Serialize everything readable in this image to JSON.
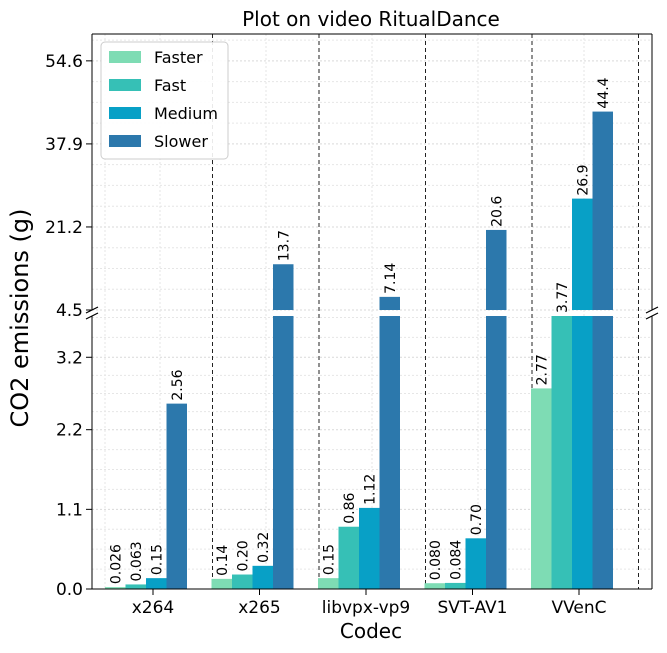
{
  "chart_data": {
    "type": "bar",
    "title": "Plot on video RitualDance",
    "xlabel": "Codec",
    "ylabel": "CO2 emissions (g)",
    "categories": [
      "x264",
      "x265",
      "libvpx-vp9",
      "SVT-AV1",
      "VVenC"
    ],
    "series": [
      {
        "name": "Faster",
        "values": [
          0.026,
          0.14,
          0.15,
          0.08,
          2.77
        ],
        "labels": [
          "0.026",
          "0.14",
          "0.15",
          "0.080",
          "2.77"
        ]
      },
      {
        "name": "Fast",
        "values": [
          0.063,
          0.2,
          0.86,
          0.084,
          3.77
        ],
        "labels": [
          "0.063",
          "0.20",
          "0.86",
          "0.084",
          "3.77"
        ]
      },
      {
        "name": "Medium",
        "values": [
          0.15,
          0.32,
          1.12,
          0.7,
          26.9
        ],
        "labels": [
          "0.15",
          "0.32",
          "1.12",
          "0.70",
          "26.9"
        ]
      },
      {
        "name": "Slower",
        "values": [
          2.56,
          13.7,
          7.14,
          20.6,
          44.4
        ],
        "labels": [
          "2.56",
          "13.7",
          "7.14",
          "20.6",
          "44.4"
        ]
      }
    ],
    "broken_axis": {
      "lower_range": [
        0,
        3.77
      ],
      "upper_range": [
        4.5,
        60
      ],
      "lower_ticks": [
        "0.0",
        "1.1",
        "2.2",
        "3.2"
      ],
      "lower_tick_values": [
        0.0,
        1.1,
        2.2,
        3.2
      ],
      "upper_ticks": [
        "4.5",
        "21.2",
        "37.9",
        "54.6"
      ],
      "upper_tick_values": [
        4.5,
        21.2,
        37.9,
        54.6
      ]
    },
    "legend_position": "top-left",
    "grid": true,
    "colors": {
      "Faster": "#7edcb4",
      "Fast": "#36c0b6",
      "Medium": "#08a0c6",
      "Slower": "#2c78ac"
    }
  }
}
